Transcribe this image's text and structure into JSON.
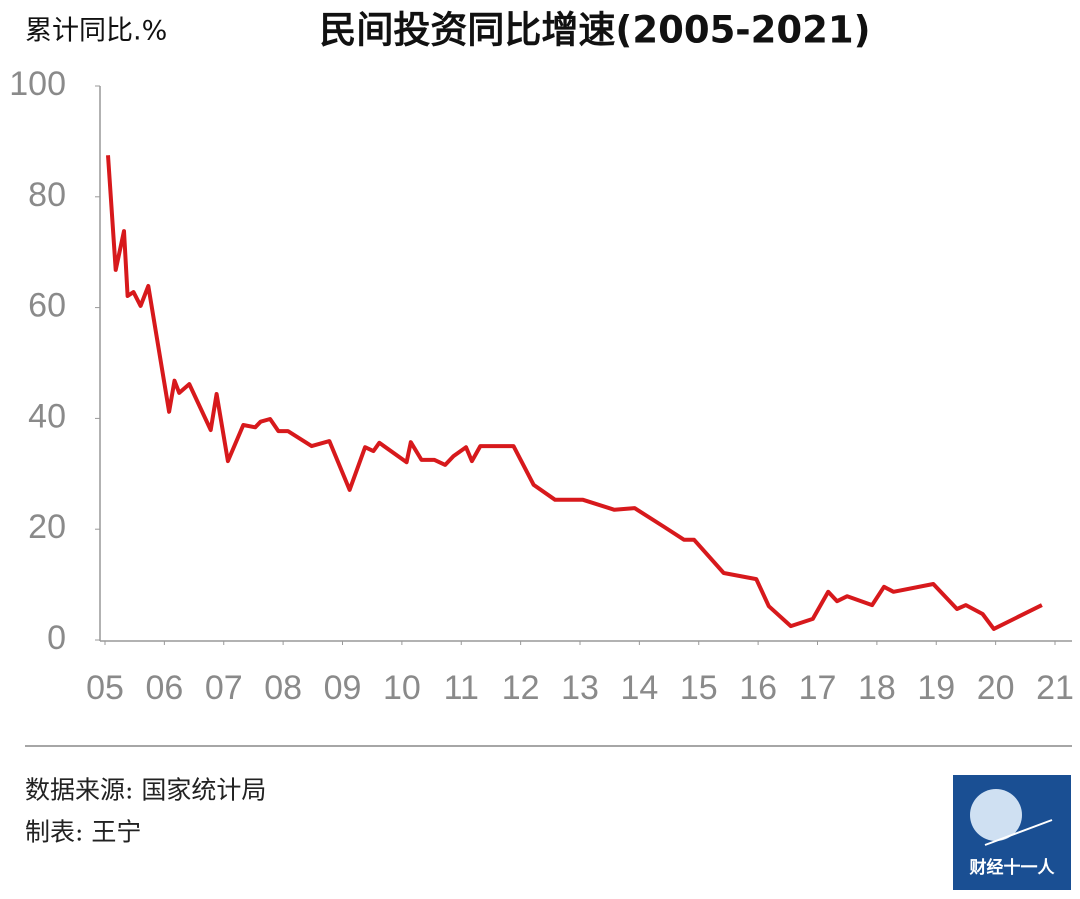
{
  "chart_data": {
    "type": "line",
    "title": "民间投资同比增速(2005-2021)",
    "y_label": "累计同比.%",
    "x": [
      5.05,
      5.18,
      5.32,
      5.38,
      5.48,
      5.6,
      5.73,
      6.08,
      6.17,
      6.25,
      6.42,
      6.78,
      6.88,
      7.07,
      7.33,
      7.53,
      7.62,
      7.78,
      7.92,
      8.08,
      8.48,
      8.78,
      9.12,
      9.38,
      9.52,
      9.62,
      10.08,
      10.15,
      10.33,
      10.55,
      10.73,
      10.87,
      11.08,
      11.18,
      11.32,
      11.88,
      12.22,
      12.58,
      13.05,
      13.58,
      13.92,
      14.42,
      14.75,
      14.92,
      15.42,
      15.97,
      16.18,
      16.55,
      16.92,
      17.18,
      17.33,
      17.5,
      17.92,
      18.12,
      18.28,
      18.95,
      19.35,
      19.5,
      19.78,
      19.97,
      20.78
    ],
    "series": [
      {
        "color": "#d7191c",
        "values": [
          87.5,
          66.8,
          73.8,
          62.1,
          62.8,
          60.3,
          63.9,
          41.2,
          46.8,
          44.6,
          46.2,
          37.9,
          44.4,
          32.3,
          38.8,
          38.4,
          39.4,
          39.9,
          37.7,
          37.7,
          35.0,
          35.9,
          27.1,
          34.8,
          34.1,
          35.6,
          32.1,
          35.7,
          32.5,
          32.5,
          31.6,
          33.2,
          34.8,
          32.3,
          35.0,
          35.0,
          28.0,
          25.3,
          25.3,
          23.5,
          23.8,
          20.4,
          18.1,
          18.1,
          12.1,
          11.0,
          6.1,
          2.5,
          3.8,
          8.7,
          7.0,
          7.9,
          6.3,
          9.6,
          8.7,
          10.1,
          5.6,
          6.3,
          4.7,
          2.0,
          6.3
        ]
      }
    ],
    "xlim": [
      5,
      21
    ],
    "xticks": [
      {
        "value": 5,
        "label": "05"
      },
      {
        "value": 6,
        "label": "06"
      },
      {
        "value": 7,
        "label": "07"
      },
      {
        "value": 8,
        "label": "08"
      },
      {
        "value": 9,
        "label": "09"
      },
      10,
      11,
      12,
      13,
      14,
      15,
      16,
      17,
      18,
      19,
      20,
      21
    ],
    "ylim": [
      0,
      100
    ],
    "yticks": [
      0,
      20,
      40,
      60,
      80,
      100
    ],
    "grid": false
  },
  "footer": {
    "source": "数据来源: 国家统计局",
    "author": "制表: 王宁",
    "logo": "财经十一人"
  }
}
